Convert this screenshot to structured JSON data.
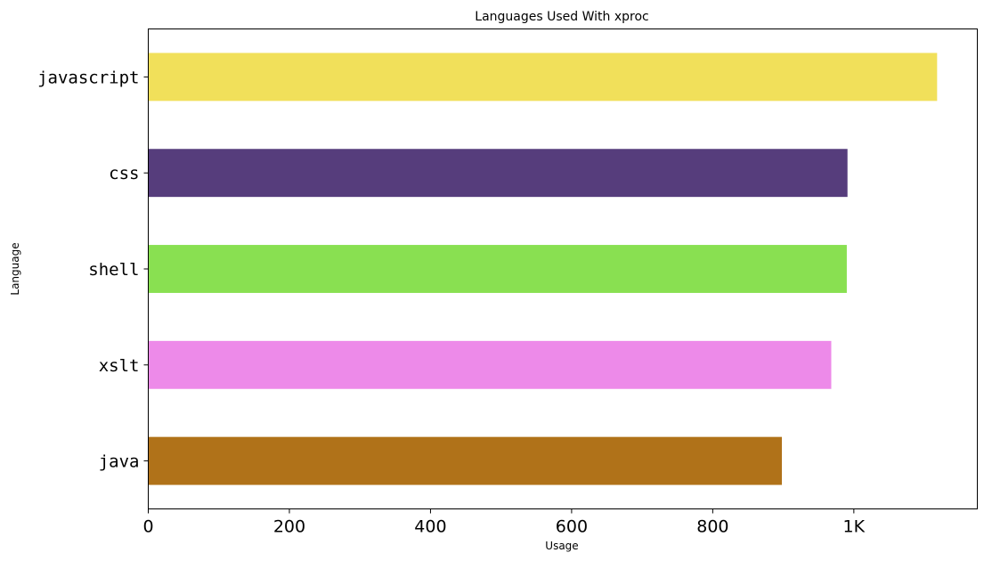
{
  "chart_data": {
    "type": "bar",
    "orientation": "horizontal",
    "title": "Languages Used With xproc",
    "xlabel": "Usage",
    "ylabel": "Language",
    "categories": [
      "javascript",
      "css",
      "shell",
      "xslt",
      "java"
    ],
    "values": [
      1118,
      991,
      990,
      968,
      898
    ],
    "colors": [
      "#f1e05a",
      "#563d7c",
      "#89e051",
      "#ed8ae9",
      "#b07219"
    ],
    "xlim": [
      0,
      1175
    ],
    "xticks": [
      0,
      200,
      400,
      600,
      800,
      1000
    ],
    "xtick_labels": [
      "0",
      "200",
      "400",
      "600",
      "800",
      "1K"
    ],
    "grid": false,
    "legend": "none"
  }
}
